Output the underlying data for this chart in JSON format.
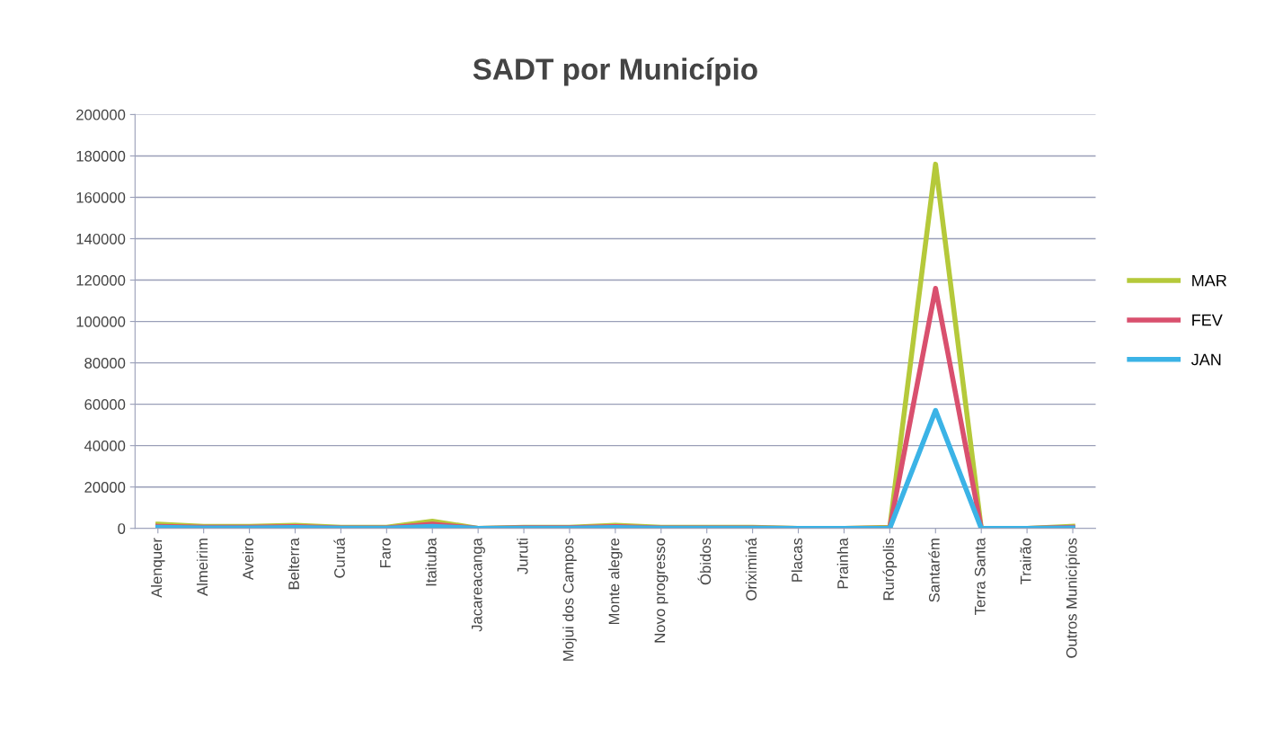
{
  "chart_data": {
    "type": "line",
    "title": "SADT por Município",
    "categories": [
      "Alenquer",
      "Almeirim",
      "Aveiro",
      "Belterra",
      "Curuá",
      "Faro",
      "Itaituba",
      "Jacareacanga",
      "Juruti",
      "Mojui dos Campos",
      "Monte alegre",
      "Novo progresso",
      "Óbidos",
      "Oriximiná",
      "Placas",
      "Prainha",
      "Rurópolis",
      "Santarém",
      "Terra Santa",
      "Trairão",
      "Outros Municípios"
    ],
    "series": [
      {
        "name": "MAR",
        "color": "#b5c93a",
        "values": [
          2000,
          1000,
          1000,
          1500,
          500,
          500,
          3500,
          0,
          500,
          500,
          1500,
          500,
          500,
          500,
          0,
          0,
          500,
          176000,
          0,
          0,
          1000
        ]
      },
      {
        "name": "FEV",
        "color": "#d9506e",
        "values": [
          1000,
          500,
          500,
          800,
          200,
          200,
          2000,
          0,
          300,
          300,
          800,
          200,
          200,
          200,
          0,
          0,
          200,
          116000,
          0,
          0,
          500
        ]
      },
      {
        "name": "JAN",
        "color": "#3bb3e6",
        "values": [
          500,
          200,
          200,
          400,
          100,
          100,
          1000,
          0,
          100,
          100,
          400,
          100,
          100,
          100,
          0,
          0,
          100,
          57000,
          0,
          0,
          200
        ]
      }
    ],
    "ylim": [
      0,
      200000
    ],
    "yticks": [
      0,
      20000,
      40000,
      60000,
      80000,
      100000,
      120000,
      140000,
      160000,
      180000,
      200000
    ],
    "grid": "y",
    "legend": "right",
    "marker": "none",
    "line_style": "solid"
  }
}
